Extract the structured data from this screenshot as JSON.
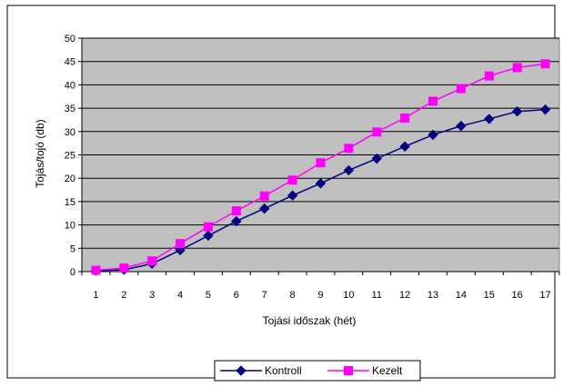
{
  "chart_data": {
    "type": "line",
    "title": "",
    "xlabel": "Tojási időszak (hét)",
    "ylabel": "Tojás/tojó (db)",
    "x": [
      "1",
      "2",
      "3",
      "4",
      "5",
      "6",
      "7",
      "8",
      "9",
      "10",
      "11",
      "12",
      "13",
      "14",
      "15",
      "16",
      "17"
    ],
    "ylim": [
      0,
      50
    ],
    "yticks": [
      0,
      5,
      10,
      15,
      20,
      25,
      30,
      35,
      40,
      45,
      50
    ],
    "grid": true,
    "plot_background": "#c0c0c0",
    "legend_position": "bottom",
    "series": [
      {
        "name": "Kontroll",
        "color": "#000080",
        "marker": "diamond",
        "values": [
          0.2,
          0.4,
          1.7,
          4.6,
          7.7,
          10.8,
          13.5,
          16.3,
          18.9,
          21.7,
          24.2,
          26.8,
          29.3,
          31.2,
          32.7,
          34.3,
          34.7
        ]
      },
      {
        "name": "Kezelt",
        "color": "#ff00ff",
        "marker": "square",
        "values": [
          0.3,
          0.8,
          2.3,
          6.0,
          9.6,
          13.0,
          16.2,
          19.6,
          23.3,
          26.4,
          29.9,
          32.9,
          36.5,
          39.2,
          41.9,
          43.7,
          44.5
        ]
      }
    ]
  }
}
